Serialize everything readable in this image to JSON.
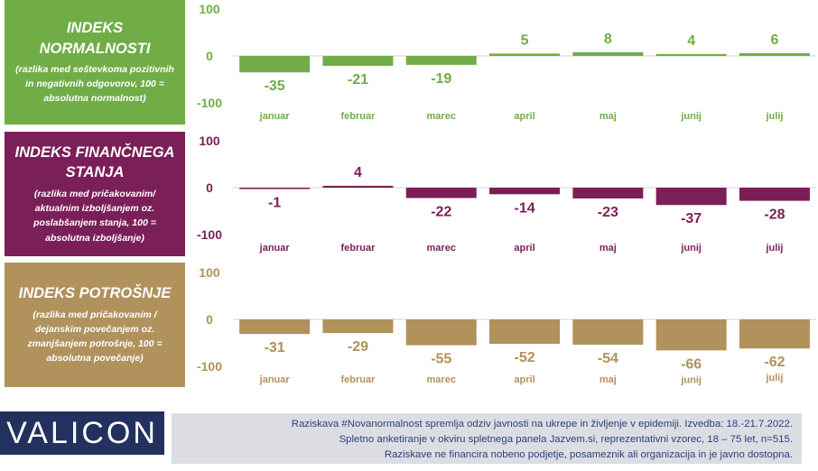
{
  "colors": {
    "green": "#70ad47",
    "purple": "#7b1f58",
    "gold": "#b1915c",
    "logo_bg": "#23315f",
    "note_bg": "#dcdde3",
    "note_text": "#2d3e7a"
  },
  "panels": [
    {
      "title": "INDEKS NORMALNOSTI",
      "subtitle": "(razlika med seštevkoma pozitivnih in negativnih odgovorov, 100 = absolutna normalnost)"
    },
    {
      "title": "INDEKS FINANČNEGA STANJA",
      "subtitle": "(razlika med pričakovanim/ aktualnim izboljšanjem oz. poslabšanjem stanja, 100 = absolutna izboljšanje)"
    },
    {
      "title": "INDEKS POTROŠNJE",
      "subtitle": "(razlika med pričakovanim / dejanskim povečanjem oz. zmanjšanjem potrošnje, 100 = absolutna povečanje)"
    }
  ],
  "chart_data": [
    {
      "type": "bar",
      "categories": [
        "januar",
        "februar",
        "marec",
        "april",
        "maj",
        "junij",
        "julij"
      ],
      "values": [
        -35,
        -21,
        -19,
        5,
        8,
        4,
        6
      ],
      "ylim": [
        -100,
        100
      ],
      "yticks": [
        "100",
        "0",
        "-100"
      ],
      "color": "#70ad47"
    },
    {
      "type": "bar",
      "categories": [
        "januar",
        "februar",
        "marec",
        "april",
        "maj",
        "junij",
        "julij"
      ],
      "values": [
        -1,
        4,
        -22,
        -14,
        -23,
        -37,
        -28
      ],
      "ylim": [
        -100,
        100
      ],
      "yticks": [
        "100",
        "0",
        "-100"
      ],
      "color": "#7b1f58"
    },
    {
      "type": "bar",
      "categories": [
        "januar",
        "februar",
        "marec",
        "april",
        "maj",
        "junij",
        "julij"
      ],
      "values": [
        -31,
        -29,
        -55,
        -52,
        -54,
        -66,
        -62
      ],
      "ylim": [
        -100,
        100
      ],
      "yticks": [
        "100",
        "0",
        "-100"
      ],
      "color": "#b1915c"
    }
  ],
  "footer": {
    "logo": "VALICON",
    "lines": [
      "Raziskava #Novanormalnost spremlja odziv javnosti na ukrepe in življenje v epidemiji. Izvedba: 18.-21.7.2022.",
      "Spletno anketiranje v okviru spletnega panela Jazvem.si, reprezentativni vzorec, 18 – 75 let, n=515.",
      "Raziskave ne financira nobeno podjetje, posameznik ali organizacija in je javno dostopna."
    ]
  }
}
